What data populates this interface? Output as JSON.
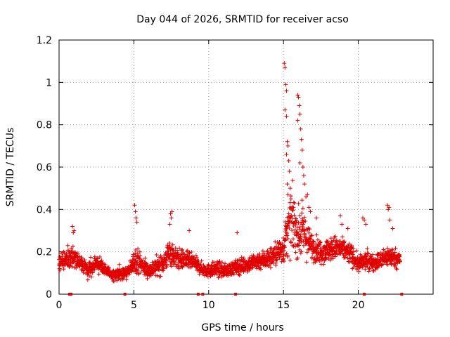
{
  "chart_data": {
    "type": "scatter",
    "title": "Day 044 of 2026, SRMTID for receiver acso",
    "xlabel": "GPS time / hours",
    "ylabel": "SRMTID / TECUs",
    "xlim": [
      0,
      25
    ],
    "ylim": [
      0,
      1.2
    ],
    "x_ticks": [
      "0",
      "5",
      "10",
      "15",
      "20"
    ],
    "y_ticks": [
      "0",
      "0.2",
      "0.4",
      "0.6",
      "0.8",
      "1",
      "1.2"
    ],
    "grid": true,
    "marker": "plus",
    "color": "#e00000",
    "series": [
      {
        "name": "SRMTID",
        "profile": [
          [
            0.0,
            0.14,
            0.06
          ],
          [
            0.3,
            0.16,
            0.07
          ],
          [
            0.7,
            0.17,
            0.08
          ],
          [
            1.0,
            0.18,
            0.09
          ],
          [
            1.4,
            0.14,
            0.07
          ],
          [
            1.8,
            0.12,
            0.06
          ],
          [
            2.2,
            0.13,
            0.06
          ],
          [
            2.6,
            0.15,
            0.07
          ],
          [
            3.0,
            0.12,
            0.05
          ],
          [
            3.5,
            0.09,
            0.04
          ],
          [
            4.0,
            0.1,
            0.05
          ],
          [
            4.5,
            0.1,
            0.05
          ],
          [
            4.8,
            0.12,
            0.06
          ],
          [
            5.1,
            0.17,
            0.1
          ],
          [
            5.5,
            0.14,
            0.08
          ],
          [
            6.0,
            0.11,
            0.06
          ],
          [
            6.5,
            0.13,
            0.07
          ],
          [
            7.0,
            0.15,
            0.08
          ],
          [
            7.4,
            0.2,
            0.1
          ],
          [
            7.8,
            0.17,
            0.08
          ],
          [
            8.5,
            0.16,
            0.07
          ],
          [
            9.0,
            0.15,
            0.06
          ],
          [
            9.5,
            0.12,
            0.05
          ],
          [
            10.0,
            0.11,
            0.05
          ],
          [
            10.5,
            0.12,
            0.06
          ],
          [
            11.0,
            0.11,
            0.05
          ],
          [
            11.5,
            0.12,
            0.05
          ],
          [
            12.0,
            0.13,
            0.06
          ],
          [
            12.5,
            0.14,
            0.06
          ],
          [
            13.0,
            0.15,
            0.07
          ],
          [
            13.5,
            0.16,
            0.07
          ],
          [
            14.0,
            0.17,
            0.08
          ],
          [
            14.5,
            0.19,
            0.09
          ],
          [
            15.0,
            0.22,
            0.12
          ],
          [
            15.3,
            0.3,
            0.2
          ],
          [
            15.6,
            0.35,
            0.22
          ],
          [
            16.0,
            0.28,
            0.18
          ],
          [
            16.3,
            0.3,
            0.2
          ],
          [
            16.7,
            0.24,
            0.12
          ],
          [
            17.0,
            0.22,
            0.1
          ],
          [
            17.5,
            0.2,
            0.09
          ],
          [
            18.0,
            0.21,
            0.09
          ],
          [
            18.5,
            0.22,
            0.09
          ],
          [
            19.0,
            0.21,
            0.08
          ],
          [
            19.5,
            0.19,
            0.08
          ],
          [
            20.0,
            0.14,
            0.06
          ],
          [
            20.5,
            0.16,
            0.07
          ],
          [
            21.0,
            0.15,
            0.06
          ],
          [
            21.5,
            0.16,
            0.07
          ],
          [
            22.0,
            0.18,
            0.08
          ],
          [
            22.5,
            0.17,
            0.07
          ],
          [
            22.8,
            0.16,
            0.06
          ]
        ],
        "highlights": [
          [
            0.9,
            0.32
          ],
          [
            0.95,
            0.29
          ],
          [
            1.0,
            0.3
          ],
          [
            5.05,
            0.42
          ],
          [
            5.1,
            0.39
          ],
          [
            5.2,
            0.34
          ],
          [
            5.15,
            0.36
          ],
          [
            7.45,
            0.38
          ],
          [
            7.5,
            0.36
          ],
          [
            7.55,
            0.39
          ],
          [
            7.4,
            0.33
          ],
          [
            8.7,
            0.3
          ],
          [
            11.9,
            0.29
          ],
          [
            15.05,
            1.09
          ],
          [
            15.1,
            1.07
          ],
          [
            15.15,
            0.99
          ],
          [
            15.2,
            0.96
          ],
          [
            15.1,
            0.87
          ],
          [
            15.2,
            0.84
          ],
          [
            15.25,
            0.72
          ],
          [
            15.3,
            0.7
          ],
          [
            15.2,
            0.66
          ],
          [
            15.35,
            0.63
          ],
          [
            15.4,
            0.58
          ],
          [
            15.25,
            0.52
          ],
          [
            15.45,
            0.5
          ],
          [
            15.3,
            0.47
          ],
          [
            15.5,
            0.45
          ],
          [
            15.95,
            0.94
          ],
          [
            16.0,
            0.93
          ],
          [
            16.05,
            0.89
          ],
          [
            15.95,
            0.82
          ],
          [
            16.1,
            0.85
          ],
          [
            16.15,
            0.78
          ],
          [
            16.2,
            0.73
          ],
          [
            16.25,
            0.68
          ],
          [
            16.1,
            0.62
          ],
          [
            16.3,
            0.6
          ],
          [
            16.35,
            0.56
          ],
          [
            16.4,
            0.52
          ],
          [
            16.5,
            0.46
          ],
          [
            16.6,
            0.47
          ],
          [
            16.7,
            0.41
          ],
          [
            16.8,
            0.39
          ],
          [
            17.2,
            0.36
          ],
          [
            18.8,
            0.37
          ],
          [
            18.9,
            0.33
          ],
          [
            19.3,
            0.31
          ],
          [
            20.3,
            0.36
          ],
          [
            20.4,
            0.35
          ],
          [
            20.5,
            0.33
          ],
          [
            21.95,
            0.42
          ],
          [
            22.0,
            0.4
          ],
          [
            22.05,
            0.41
          ],
          [
            22.1,
            0.35
          ],
          [
            22.3,
            0.31
          ]
        ],
        "gap_markers": [
          0.7,
          0.8,
          4.4,
          9.3,
          9.6,
          11.8,
          20.4,
          22.9
        ]
      }
    ]
  }
}
